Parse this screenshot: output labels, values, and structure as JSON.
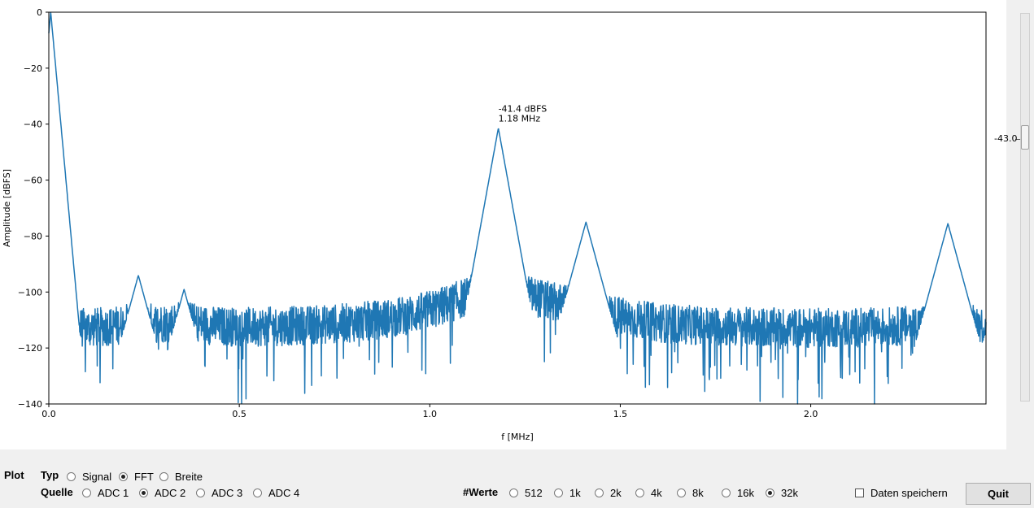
{
  "chart_data": {
    "type": "line",
    "xlabel": "f [MHz]",
    "ylabel": "Amplitude [dBFS]",
    "xlim": [
      0.0,
      2.46
    ],
    "ylim": [
      -140,
      0
    ],
    "xticks": [
      0.0,
      0.5,
      1.0,
      1.5,
      2.0
    ],
    "xtick_labels": [
      "0.0",
      "0.5",
      "1.0",
      "1.5",
      "2.0"
    ],
    "yticks": [
      0,
      -20,
      -40,
      -60,
      -80,
      -100,
      -120,
      -140
    ],
    "ytick_labels": [
      "0",
      "−20",
      "−40",
      "−60",
      "−80",
      "−100",
      "−120",
      "−140"
    ],
    "grid": false,
    "color": "#1f77b4",
    "noise_floor_dbfs": -113,
    "peaks": [
      {
        "x": 0.005,
        "y": 0
      },
      {
        "x": 0.235,
        "y": -94
      },
      {
        "x": 0.355,
        "y": -99
      },
      {
        "x": 1.18,
        "y": -41.4
      },
      {
        "x": 1.41,
        "y": -75
      },
      {
        "x": 2.36,
        "y": -75.5
      }
    ],
    "annotation": {
      "x": 1.18,
      "y": -41.4,
      "line1": "-41.4 dBFS",
      "line2": "1.18 MHz"
    }
  },
  "slider": {
    "value": "-43.0"
  },
  "controls": {
    "plot_label": "Plot",
    "typ_label": "Typ",
    "typ_options": [
      "Signal",
      "FFT",
      "Breite"
    ],
    "typ_selected": "FFT",
    "quelle_label": "Quelle",
    "quelle_options": [
      "ADC 1",
      "ADC 2",
      "ADC 3",
      "ADC 4"
    ],
    "quelle_selected": "ADC 2",
    "werte_label": "#Werte",
    "werte_options": [
      "512",
      "1k",
      "2k",
      "4k",
      "8k",
      "16k",
      "32k"
    ],
    "werte_selected": "32k",
    "save_label": "Daten speichern",
    "save_checked": false,
    "quit_label": "Quit"
  }
}
